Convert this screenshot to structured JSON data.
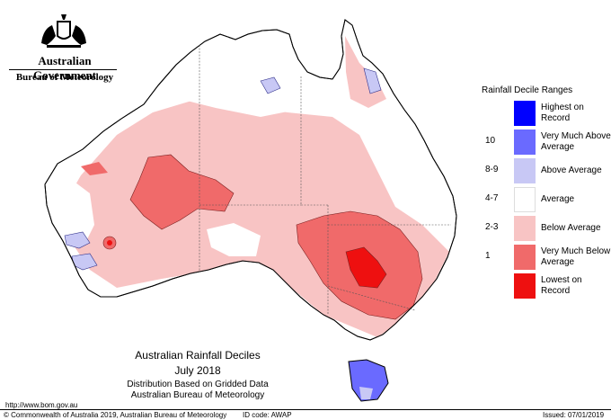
{
  "header": {
    "government": "Australian Government",
    "bureau": "Bureau of Meteorology"
  },
  "map": {
    "title": "Australian Rainfall Deciles",
    "period": "July 2018",
    "basis": "Distribution Based on Gridded Data",
    "source": "Australian Bureau of Meteorology"
  },
  "legend": {
    "title": "Rainfall Decile Ranges",
    "items": [
      {
        "decile": "",
        "label": "Highest on Record",
        "color": "#0000ff"
      },
      {
        "decile": "10",
        "label": "Very Much Above Average",
        "color": "#6a6aff"
      },
      {
        "decile": "8-9",
        "label": "Above Average",
        "color": "#c8c8f5"
      },
      {
        "decile": "4-7",
        "label": "Average",
        "color": "#ffffff"
      },
      {
        "decile": "2-3",
        "label": "Below Average",
        "color": "#f8c4c4"
      },
      {
        "decile": "1",
        "label": "Very Much Below Average",
        "color": "#f06a6a"
      },
      {
        "decile": "",
        "label": "Lowest on Record",
        "color": "#ee1010"
      }
    ]
  },
  "footer": {
    "url": "http://www.bom.gov.au",
    "copyright": "© Commonwealth of Australia 2019, Australian Bureau of Meteorology",
    "id_code": "ID code: AWAP",
    "issued": "Issued: 07/01/2019"
  }
}
